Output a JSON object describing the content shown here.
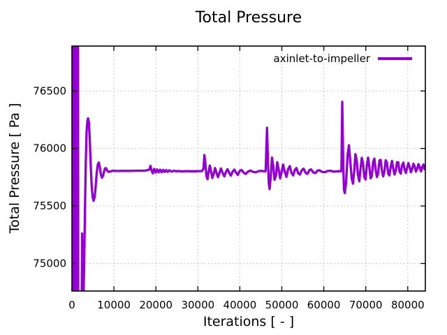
{
  "colors": {
    "line": "#9400d3",
    "grid": "#b8b8b8",
    "axis": "#000000",
    "background": "#ffffff",
    "text": "#000000"
  },
  "chart_data": {
    "type": "line",
    "title": "Total Pressure",
    "xlabel": "Iterations [ - ]",
    "ylabel": "Total Pressure [ Pa ]",
    "series_name": "axinlet-to-impeller",
    "legend_position": "top-right",
    "grid": true,
    "line_color": "#9400d3",
    "xlim": [
      0,
      84200
    ],
    "ylim": [
      74760,
      76890
    ],
    "x_ticks": [
      0,
      10000,
      20000,
      30000,
      40000,
      50000,
      60000,
      70000,
      80000
    ],
    "y_ticks": [
      75000,
      75500,
      76000,
      76500
    ],
    "points": [
      [
        0,
        76950
      ],
      [
        60,
        74700
      ],
      [
        120,
        76950
      ],
      [
        180,
        74700
      ],
      [
        240,
        76950
      ],
      [
        300,
        74700
      ],
      [
        360,
        76950
      ],
      [
        420,
        74700
      ],
      [
        480,
        76950
      ],
      [
        540,
        74700
      ],
      [
        600,
        76950
      ],
      [
        660,
        74700
      ],
      [
        720,
        76950
      ],
      [
        780,
        74700
      ],
      [
        840,
        76950
      ],
      [
        900,
        74700
      ],
      [
        960,
        76950
      ],
      [
        1020,
        74700
      ],
      [
        1080,
        76950
      ],
      [
        1140,
        74700
      ],
      [
        1200,
        76950
      ],
      [
        1260,
        74700
      ],
      [
        1320,
        76950
      ],
      [
        1380,
        74700
      ],
      [
        1440,
        76950
      ],
      [
        1500,
        74700
      ],
      [
        1650,
        74680
      ],
      [
        1900,
        74620
      ],
      [
        2150,
        74600
      ],
      [
        2330,
        74650
      ],
      [
        2430,
        75260
      ],
      [
        2520,
        74680
      ],
      [
        2700,
        74600
      ],
      [
        2900,
        74950
      ],
      [
        3100,
        75450
      ],
      [
        3300,
        75880
      ],
      [
        3500,
        76150
      ],
      [
        3700,
        76245
      ],
      [
        3850,
        76262
      ],
      [
        4050,
        76225
      ],
      [
        4250,
        76080
      ],
      [
        4450,
        75880
      ],
      [
        4700,
        75680
      ],
      [
        4950,
        75575
      ],
      [
        5150,
        75545
      ],
      [
        5400,
        75575
      ],
      [
        5650,
        75670
      ],
      [
        5900,
        75790
      ],
      [
        6150,
        75860
      ],
      [
        6400,
        75878
      ],
      [
        6650,
        75835
      ],
      [
        6900,
        75770
      ],
      [
        7150,
        75745
      ],
      [
        7400,
        75762
      ],
      [
        7650,
        75800
      ],
      [
        7900,
        75828
      ],
      [
        8150,
        75828
      ],
      [
        8400,
        75808
      ],
      [
        8700,
        75796
      ],
      [
        9000,
        75798
      ],
      [
        9400,
        75804
      ],
      [
        9900,
        75806
      ],
      [
        10600,
        75804
      ],
      [
        11600,
        75805
      ],
      [
        12800,
        75805
      ],
      [
        14000,
        75805
      ],
      [
        15200,
        75806
      ],
      [
        16400,
        75806
      ],
      [
        17400,
        75807
      ],
      [
        18100,
        75812
      ],
      [
        18450,
        75818
      ],
      [
        18700,
        75848
      ],
      [
        18950,
        75812
      ],
      [
        19250,
        75783
      ],
      [
        19600,
        75822
      ],
      [
        19950,
        75790
      ],
      [
        20300,
        75818
      ],
      [
        20650,
        75792
      ],
      [
        21000,
        75815
      ],
      [
        21350,
        75793
      ],
      [
        21700,
        75813
      ],
      [
        22050,
        75795
      ],
      [
        22400,
        75812
      ],
      [
        22800,
        75796
      ],
      [
        23200,
        75810
      ],
      [
        23700,
        75798
      ],
      [
        24200,
        75806
      ],
      [
        24800,
        75802
      ],
      [
        25500,
        75804
      ],
      [
        26300,
        75801
      ],
      [
        27200,
        75803
      ],
      [
        28200,
        75802
      ],
      [
        29200,
        75802
      ],
      [
        30200,
        75803
      ],
      [
        31000,
        75804
      ],
      [
        31350,
        75825
      ],
      [
        31550,
        75942
      ],
      [
        31800,
        75865
      ],
      [
        32050,
        75760
      ],
      [
        32300,
        75733
      ],
      [
        32600,
        75802
      ],
      [
        32850,
        75852
      ],
      [
        33150,
        75798
      ],
      [
        33450,
        75743
      ],
      [
        33800,
        75782
      ],
      [
        34100,
        75830
      ],
      [
        34450,
        75788
      ],
      [
        34800,
        75750
      ],
      [
        35200,
        75792
      ],
      [
        35500,
        75826
      ],
      [
        35900,
        75788
      ],
      [
        36300,
        75757
      ],
      [
        36700,
        75796
      ],
      [
        37050,
        75820
      ],
      [
        37450,
        75788
      ],
      [
        37850,
        75764
      ],
      [
        38300,
        75800
      ],
      [
        38700,
        75816
      ],
      [
        39100,
        75789
      ],
      [
        39500,
        75770
      ],
      [
        40000,
        75806
      ],
      [
        40400,
        75812
      ],
      [
        40900,
        75790
      ],
      [
        41400,
        75778
      ],
      [
        42000,
        75800
      ],
      [
        42500,
        75808
      ],
      [
        43100,
        75797
      ],
      [
        43800,
        75792
      ],
      [
        44500,
        75803
      ],
      [
        45200,
        75805
      ],
      [
        45800,
        75801
      ],
      [
        46150,
        75803
      ],
      [
        46470,
        76180
      ],
      [
        46700,
        75902
      ],
      [
        46900,
        75700
      ],
      [
        47100,
        75646
      ],
      [
        47400,
        75778
      ],
      [
        47650,
        75920
      ],
      [
        47950,
        75848
      ],
      [
        48250,
        75728
      ],
      [
        48600,
        75762
      ],
      [
        48900,
        75880
      ],
      [
        49300,
        75808
      ],
      [
        49600,
        75740
      ],
      [
        50000,
        75802
      ],
      [
        50300,
        75860
      ],
      [
        50700,
        75798
      ],
      [
        51100,
        75753
      ],
      [
        51500,
        75820
      ],
      [
        51900,
        75846
      ],
      [
        52300,
        75788
      ],
      [
        52700,
        75766
      ],
      [
        53100,
        75812
      ],
      [
        53500,
        75830
      ],
      [
        53900,
        75784
      ],
      [
        54300,
        75773
      ],
      [
        54800,
        75812
      ],
      [
        55200,
        75824
      ],
      [
        55700,
        75786
      ],
      [
        56100,
        75779
      ],
      [
        56600,
        75812
      ],
      [
        57000,
        75818
      ],
      [
        57500,
        75791
      ],
      [
        58000,
        75786
      ],
      [
        58500,
        75808
      ],
      [
        59000,
        75810
      ],
      [
        59600,
        75796
      ],
      [
        60200,
        75793
      ],
      [
        60900,
        75804
      ],
      [
        61600,
        75806
      ],
      [
        62300,
        75798
      ],
      [
        63000,
        75800
      ],
      [
        63600,
        75803
      ],
      [
        64000,
        75802
      ],
      [
        64200,
        75804
      ],
      [
        64400,
        76405
      ],
      [
        64620,
        75895
      ],
      [
        64820,
        75640
      ],
      [
        65020,
        75612
      ],
      [
        65320,
        75705
      ],
      [
        65700,
        75952
      ],
      [
        66000,
        76028
      ],
      [
        66300,
        75898
      ],
      [
        66650,
        75742
      ],
      [
        66950,
        75694
      ],
      [
        67250,
        75800
      ],
      [
        67550,
        75950
      ],
      [
        67850,
        75898
      ],
      [
        68150,
        75770
      ],
      [
        68450,
        75714
      ],
      [
        68750,
        75822
      ],
      [
        69050,
        75918
      ],
      [
        69350,
        75868
      ],
      [
        69650,
        75752
      ],
      [
        69950,
        75730
      ],
      [
        70250,
        75850
      ],
      [
        70550,
        75920
      ],
      [
        70850,
        75838
      ],
      [
        71150,
        75740
      ],
      [
        71450,
        75762
      ],
      [
        71750,
        75880
      ],
      [
        72050,
        75912
      ],
      [
        72350,
        75818
      ],
      [
        72650,
        75752
      ],
      [
        72950,
        75782
      ],
      [
        73250,
        75895
      ],
      [
        73550,
        75900
      ],
      [
        73850,
        75808
      ],
      [
        74150,
        75757
      ],
      [
        74450,
        75800
      ],
      [
        74750,
        75897
      ],
      [
        75050,
        75878
      ],
      [
        75350,
        75780
      ],
      [
        75650,
        75766
      ],
      [
        75950,
        75840
      ],
      [
        76250,
        75892
      ],
      [
        76550,
        75828
      ],
      [
        76850,
        75773
      ],
      [
        77150,
        75802
      ],
      [
        77450,
        75880
      ],
      [
        77750,
        75880
      ],
      [
        78050,
        75800
      ],
      [
        78350,
        75781
      ],
      [
        78650,
        75850
      ],
      [
        78950,
        75877
      ],
      [
        79250,
        75818
      ],
      [
        79550,
        75787
      ],
      [
        79850,
        75832
      ],
      [
        80150,
        75873
      ],
      [
        80450,
        75838
      ],
      [
        80750,
        75793
      ],
      [
        81050,
        75822
      ],
      [
        81350,
        75867
      ],
      [
        81650,
        75843
      ],
      [
        81950,
        75799
      ],
      [
        82250,
        75822
      ],
      [
        82550,
        75864
      ],
      [
        82850,
        75838
      ],
      [
        83150,
        75801
      ],
      [
        83450,
        75840
      ],
      [
        83750,
        75860
      ],
      [
        84000,
        75820
      ],
      [
        84200,
        75842
      ]
    ]
  }
}
